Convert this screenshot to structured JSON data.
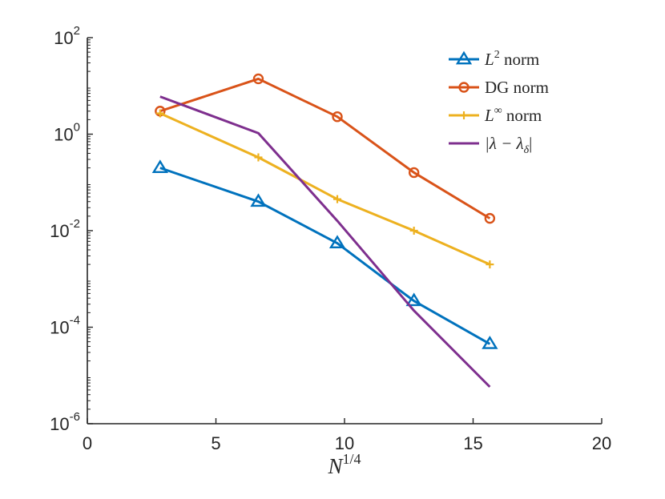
{
  "chart_data": {
    "type": "line",
    "title": "",
    "xlabel": {
      "base": "N",
      "sup": "1/4"
    },
    "ylabel": "",
    "xscale": "linear",
    "yscale": "log",
    "xlim": [
      0,
      20
    ],
    "ylim": [
      1e-06,
      100
    ],
    "xticks": [
      0,
      5,
      10,
      15,
      20
    ],
    "xtick_labels": [
      "0",
      "5",
      "10",
      "15",
      "20"
    ],
    "yticks": [
      {
        "value": 1e-06,
        "base": "10",
        "exp": "-6"
      },
      {
        "value": 0.0001,
        "base": "10",
        "exp": "-4"
      },
      {
        "value": 0.01,
        "base": "10",
        "exp": "-2"
      },
      {
        "value": 1,
        "base": "10",
        "exp": "0"
      },
      {
        "value": 100,
        "base": "10",
        "exp": "2"
      }
    ],
    "grid": false,
    "legend_position": "top-right",
    "series": [
      {
        "name": "L2 norm",
        "legend": {
          "pre": "L",
          "sup": "2",
          "post": " norm"
        },
        "color": "#0072BD",
        "marker": "triangle",
        "x": [
          2.83,
          6.65,
          9.72,
          12.7,
          15.65
        ],
        "y": [
          0.2,
          0.04,
          0.0055,
          0.00035,
          4.5e-05
        ]
      },
      {
        "name": "DG norm",
        "legend": {
          "text": "DG norm"
        },
        "color": "#D95319",
        "marker": "circle",
        "x": [
          2.83,
          6.65,
          9.72,
          12.7,
          15.65
        ],
        "y": [
          3.0,
          14.0,
          2.3,
          0.16,
          0.018
        ]
      },
      {
        "name": "L-infinity norm",
        "legend": {
          "pre": "L",
          "sup": "∞",
          "post": " norm"
        },
        "color": "#EDB120",
        "marker": "plus",
        "x": [
          2.83,
          6.65,
          9.72,
          12.7,
          15.65
        ],
        "y": [
          2.7,
          0.33,
          0.045,
          0.01,
          0.002
        ]
      },
      {
        "name": "|lambda - lambda_delta|",
        "legend": {
          "a": "|λ − λ",
          "sub": "δ",
          "b": "|"
        },
        "color": "#7E2F8E",
        "marker": "none",
        "x": [
          2.83,
          6.65,
          9.72,
          12.7,
          15.65
        ],
        "y": [
          6.0,
          1.05,
          0.016,
          0.00022,
          5.8e-06
        ]
      }
    ]
  }
}
